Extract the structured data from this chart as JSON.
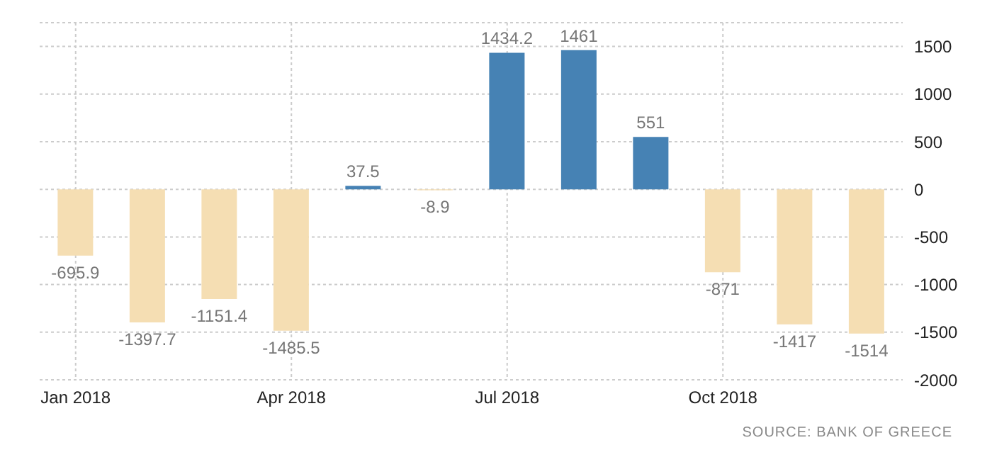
{
  "chart_data": {
    "type": "bar",
    "categories": [
      "Jan 2018",
      null,
      null,
      "Apr 2018",
      null,
      null,
      "Jul 2018",
      null,
      null,
      "Oct 2018",
      null,
      null
    ],
    "values": [
      -695.9,
      -1397.7,
      -1151.4,
      -1485.5,
      37.5,
      -8.9,
      1434.2,
      1461,
      551,
      -871,
      -1417,
      -1514
    ],
    "colors": [
      "#f5deb3",
      "#f5deb3",
      "#f5deb3",
      "#f5deb3",
      "#4682b4",
      "#f5deb3",
      "#4682b4",
      "#4682b4",
      "#4682b4",
      "#f5deb3",
      "#f5deb3",
      "#f5deb3"
    ],
    "ylim": [
      -2000,
      1750
    ],
    "yticks": [
      -2000,
      -1500,
      -1000,
      -500,
      0,
      500,
      1000,
      1500
    ],
    "grid": true,
    "data_labels": true,
    "legend": false,
    "annotations": [
      "SOURCE: BANK OF GREECE"
    ]
  }
}
